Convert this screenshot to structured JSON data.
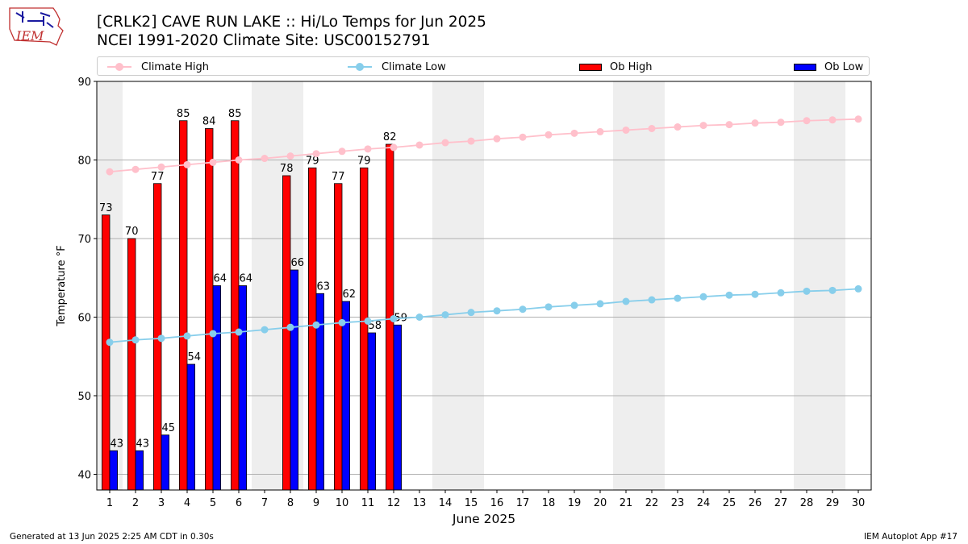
{
  "header": {
    "logo_text": "IEM",
    "title_line1": "[CRLK2] CAVE RUN LAKE :: Hi/Lo Temps for Jun 2025",
    "title_line2": "NCEI 1991-2020 Climate Site: USC00152791"
  },
  "footer": {
    "left": "Generated at 13 Jun 2025 2:25 AM CDT in 0.30s",
    "right": "IEM Autoplot App #17"
  },
  "chart_data": {
    "type": "bar",
    "xlabel": "June 2025",
    "ylabel": "Temperature °F",
    "ylim": [
      38,
      90
    ],
    "xlim": [
      0.5,
      30.5
    ],
    "yticks": [
      40,
      50,
      60,
      70,
      80,
      90
    ],
    "grid": "horizontal",
    "legend_position": "top",
    "days": [
      1,
      2,
      3,
      4,
      5,
      6,
      7,
      8,
      9,
      10,
      11,
      12,
      13,
      14,
      15,
      16,
      17,
      18,
      19,
      20,
      21,
      22,
      23,
      24,
      25,
      26,
      27,
      28,
      29,
      30
    ],
    "weekend_days": [
      1,
      7,
      8,
      14,
      15,
      21,
      22,
      28,
      29
    ],
    "series": [
      {
        "name": "Ob High",
        "kind": "bar",
        "color": "#ff0000",
        "days": [
          1,
          2,
          3,
          4,
          5,
          6,
          8,
          9,
          10,
          11,
          12
        ],
        "values": [
          73,
          70,
          77,
          85,
          84,
          85,
          78,
          79,
          77,
          79,
          82
        ]
      },
      {
        "name": "Ob Low",
        "kind": "bar",
        "color": "#0000ff",
        "days": [
          1,
          2,
          3,
          4,
          5,
          6,
          8,
          9,
          10,
          11,
          12
        ],
        "values": [
          43,
          43,
          45,
          54,
          64,
          64,
          66,
          63,
          62,
          58,
          59
        ]
      },
      {
        "name": "Climate High",
        "kind": "line",
        "color": "#ffc0cb",
        "values": [
          78.5,
          78.8,
          79.1,
          79.4,
          79.7,
          80.0,
          80.2,
          80.5,
          80.8,
          81.1,
          81.4,
          81.6,
          81.9,
          82.2,
          82.4,
          82.7,
          82.9,
          83.2,
          83.4,
          83.6,
          83.8,
          84.0,
          84.2,
          84.4,
          84.5,
          84.7,
          84.8,
          85.0,
          85.1,
          85.2
        ]
      },
      {
        "name": "Climate Low",
        "kind": "line",
        "color": "#87ceeb",
        "values": [
          56.8,
          57.1,
          57.3,
          57.6,
          57.9,
          58.1,
          58.4,
          58.7,
          59.0,
          59.3,
          59.5,
          59.8,
          60.0,
          60.3,
          60.6,
          60.8,
          61.0,
          61.3,
          61.5,
          61.7,
          62.0,
          62.2,
          62.4,
          62.6,
          62.8,
          62.9,
          63.1,
          63.3,
          63.4,
          63.6
        ]
      }
    ]
  }
}
